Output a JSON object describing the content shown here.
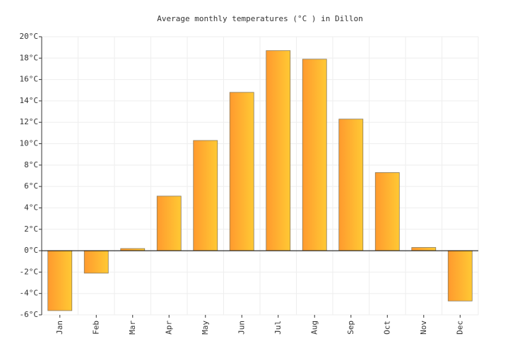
{
  "chart_data": {
    "type": "bar",
    "title": "Average monthly temperatures (°C ) in Dillon",
    "categories": [
      "Jan",
      "Feb",
      "Mar",
      "Apr",
      "May",
      "Jun",
      "Jul",
      "Aug",
      "Sep",
      "Oct",
      "Nov",
      "Dec"
    ],
    "values": [
      -5.6,
      -2.1,
      0.2,
      5.1,
      10.3,
      14.8,
      18.7,
      17.9,
      12.3,
      7.3,
      0.3,
      -4.7
    ],
    "colors": [
      "#ff9a2e",
      "#ffc934"
    ],
    "ylim": [
      -6,
      20
    ],
    "yticks": [
      {
        "value": -6,
        "label": "-6°C"
      },
      {
        "value": -4,
        "label": "-4°C"
      },
      {
        "value": -2,
        "label": "-2°C"
      },
      {
        "value": 0,
        "label": "0°C"
      },
      {
        "value": 2,
        "label": "2°C"
      },
      {
        "value": 4,
        "label": "4°C"
      },
      {
        "value": 6,
        "label": "6°C"
      },
      {
        "value": 8,
        "label": "8°C"
      },
      {
        "value": 10,
        "label": "10°C"
      },
      {
        "value": 12,
        "label": "12°C"
      },
      {
        "value": 14,
        "label": "14°C"
      },
      {
        "value": 16,
        "label": "16°C"
      },
      {
        "value": 18,
        "label": "18°C"
      },
      {
        "value": 20,
        "label": "20°C"
      }
    ],
    "grid": true
  }
}
